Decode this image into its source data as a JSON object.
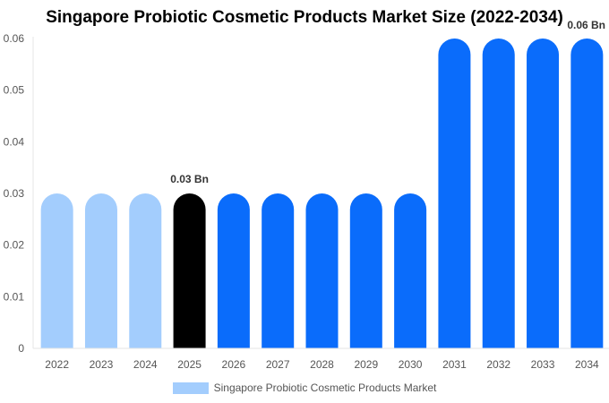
{
  "chart_data": {
    "type": "bar",
    "title": "Singapore Probiotic Cosmetic Products Market Size (2022-2034)",
    "categories": [
      "2022",
      "2023",
      "2024",
      "2025",
      "2026",
      "2027",
      "2028",
      "2029",
      "2030",
      "2031",
      "2032",
      "2033",
      "2034"
    ],
    "series": [
      {
        "name": "Singapore Probiotic Cosmetic Products Market",
        "values": [
          0.03,
          0.03,
          0.03,
          0.03,
          0.03,
          0.03,
          0.03,
          0.03,
          0.03,
          0.06,
          0.06,
          0.06,
          0.06
        ]
      }
    ],
    "bar_colors": [
      "#a3cdfd",
      "#a3cdfd",
      "#a3cdfd",
      "#000000",
      "#0a6cfb",
      "#0a6cfb",
      "#0a6cfb",
      "#0a6cfb",
      "#0a6cfb",
      "#0a6cfb",
      "#0a6cfb",
      "#0a6cfb",
      "#0a6cfb"
    ],
    "legend_color": "#a3cdfd",
    "ylim": [
      0,
      0.06
    ],
    "yticks": [
      "0",
      "0.01",
      "0.02",
      "0.03",
      "0.04",
      "0.05",
      "0.06"
    ],
    "data_labels": [
      {
        "index": 3,
        "text": "0.03 Bn"
      },
      {
        "index": 12,
        "text": "0.06 Bn"
      }
    ],
    "legend_position": "bottom",
    "grid": false,
    "xlabel": "",
    "ylabel": ""
  }
}
